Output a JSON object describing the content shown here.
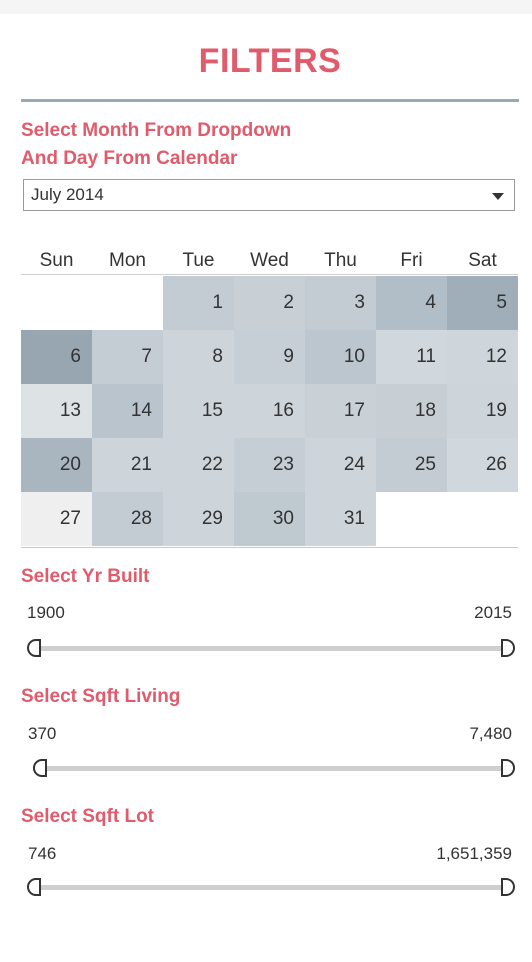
{
  "title": "FILTERS",
  "instruction_line1": "Select Month From Dropdown",
  "instruction_line2": "And Day From Calendar",
  "month_dropdown": {
    "value": "July 2014"
  },
  "weekdays": [
    "Sun",
    "Mon",
    "Tue",
    "Wed",
    "Thu",
    "Fri",
    "Sat"
  ],
  "calendar_days": [
    {
      "day": "1",
      "color": "#c3ccd3"
    },
    {
      "day": "2",
      "color": "#c8d0d6"
    },
    {
      "day": "3",
      "color": "#c3ccd3"
    },
    {
      "day": "4",
      "color": "#b2bec7"
    },
    {
      "day": "5",
      "color": "#a0aeb9"
    },
    {
      "day": "6",
      "color": "#98a6b1"
    },
    {
      "day": "7",
      "color": "#c4cdd4"
    },
    {
      "day": "8",
      "color": "#cdd4da"
    },
    {
      "day": "9",
      "color": "#c7cfd6"
    },
    {
      "day": "10",
      "color": "#bcc6ce"
    },
    {
      "day": "11",
      "color": "#d1d8dd"
    },
    {
      "day": "12",
      "color": "#cfd6db"
    },
    {
      "day": "13",
      "color": "#dde2e5"
    },
    {
      "day": "14",
      "color": "#b9c4cc"
    },
    {
      "day": "15",
      "color": "#cdd4da"
    },
    {
      "day": "16",
      "color": "#cdd4da"
    },
    {
      "day": "17",
      "color": "#c9d1d7"
    },
    {
      "day": "18",
      "color": "#c7cfd5"
    },
    {
      "day": "19",
      "color": "#cdd4da"
    },
    {
      "day": "20",
      "color": "#a9b6c0"
    },
    {
      "day": "21",
      "color": "#cdd4da"
    },
    {
      "day": "22",
      "color": "#cdd4da"
    },
    {
      "day": "23",
      "color": "#c5ced5"
    },
    {
      "day": "24",
      "color": "#cdd4da"
    },
    {
      "day": "25",
      "color": "#c3ccd3"
    },
    {
      "day": "26",
      "color": "#d1d8dd"
    },
    {
      "day": "27",
      "color": "#efefef"
    },
    {
      "day": "28",
      "color": "#c3ccd3"
    },
    {
      "day": "29",
      "color": "#cdd4da"
    },
    {
      "day": "30",
      "color": "#bfc9d0"
    },
    {
      "day": "31",
      "color": "#cdd4da"
    }
  ],
  "yr_built": {
    "label": "Select Yr Built",
    "min": "1900",
    "max": "2015"
  },
  "sqft_living": {
    "label": "Select Sqft Living",
    "min": "370",
    "max": "7,480"
  },
  "sqft_lot": {
    "label": "Select Sqft Lot",
    "min": "746",
    "max": "1,651,359"
  },
  "colors": {
    "accent": "#e05b6b",
    "divider": "#9aa9b5"
  }
}
